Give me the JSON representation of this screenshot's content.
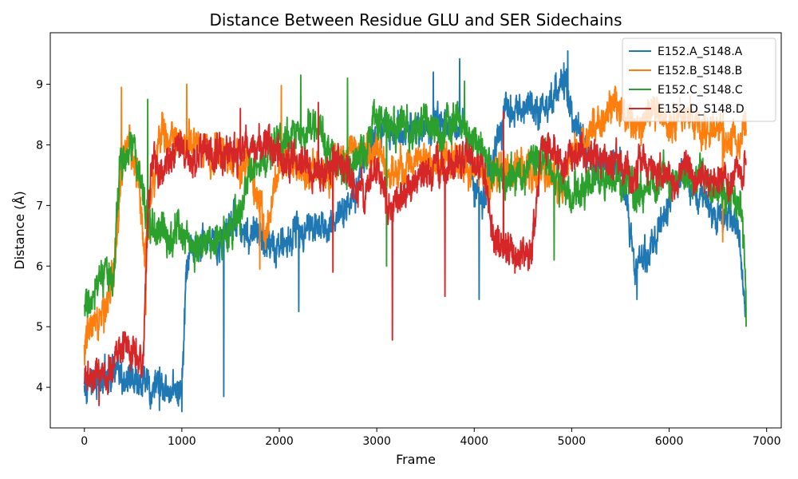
{
  "chart_data": {
    "type": "line",
    "title": "Distance Between Residue GLU and SER Sidechains",
    "xlabel": "Frame",
    "ylabel": "Distance (Å)",
    "xlim": [
      -350,
      7150
    ],
    "ylim": [
      3.33,
      9.85
    ],
    "xticks": [
      0,
      1000,
      2000,
      3000,
      4000,
      5000,
      6000,
      7000
    ],
    "yticks": [
      4,
      5,
      6,
      7,
      8,
      9
    ],
    "grid": false,
    "legend": "top-right",
    "series": [
      {
        "name": "E152.A_S148.A",
        "color": "#1f77b4",
        "trend": {
          "x": [
            0,
            200,
            500,
            800,
            1000,
            1050,
            1200,
            1400,
            1500,
            1700,
            2000,
            2300,
            2500,
            2800,
            3000,
            3300,
            3600,
            3900,
            4000,
            4100,
            4300,
            4600,
            4800,
            4900,
            5000,
            5200,
            5500,
            5650,
            5800,
            6100,
            6400,
            6700,
            6790
          ],
          "y": [
            4.2,
            4.0,
            4.1,
            4.0,
            4.05,
            6.0,
            6.3,
            6.2,
            6.8,
            6.6,
            6.4,
            6.6,
            6.5,
            7.5,
            8.3,
            8.2,
            8.3,
            8.4,
            7.4,
            7.0,
            8.5,
            8.6,
            8.7,
            9.0,
            8.4,
            7.6,
            7.6,
            6.0,
            6.2,
            7.5,
            7.0,
            6.8,
            5.3
          ]
        },
        "noise": 0.28,
        "dips": [
          {
            "x": 1430,
            "y": 3.85
          },
          {
            "x": 1000,
            "y": 3.6
          },
          {
            "x": 4050,
            "y": 5.45
          },
          {
            "x": 5670,
            "y": 5.45
          },
          {
            "x": 2200,
            "y": 5.25
          },
          {
            "x": 770,
            "y": 3.62
          }
        ],
        "peaks": [
          {
            "x": 4960,
            "y": 9.55
          },
          {
            "x": 3850,
            "y": 9.42
          },
          {
            "x": 4920,
            "y": 9.35
          },
          {
            "x": 3580,
            "y": 9.2
          }
        ]
      },
      {
        "name": "E152.B_S148.B",
        "color": "#ff7f0e",
        "trend": {
          "x": [
            0,
            100,
            200,
            300,
            380,
            450,
            550,
            620,
            700,
            800,
            1000,
            1200,
            1500,
            1700,
            1850,
            2000,
            2300,
            2600,
            2900,
            3200,
            3500,
            3800,
            4000,
            4300,
            4600,
            4900,
            5200,
            5500,
            5800,
            6100,
            6400,
            6700,
            6790
          ],
          "y": [
            4.6,
            5.2,
            5.5,
            5.8,
            7.4,
            8.2,
            7.6,
            6.4,
            7.6,
            8.2,
            8.0,
            8.1,
            7.8,
            7.6,
            6.6,
            7.8,
            7.5,
            7.7,
            7.8,
            7.6,
            7.8,
            7.7,
            7.5,
            7.6,
            7.6,
            7.5,
            8.3,
            8.4,
            8.4,
            8.4,
            8.3,
            8.0,
            8.4
          ]
        },
        "noise": 0.3,
        "dips": [
          {
            "x": 630,
            "y": 5.2
          },
          {
            "x": 200,
            "y": 4.9
          },
          {
            "x": 1800,
            "y": 5.95
          },
          {
            "x": 6550,
            "y": 6.4
          }
        ],
        "peaks": [
          {
            "x": 380,
            "y": 8.95
          },
          {
            "x": 1050,
            "y": 9.0
          },
          {
            "x": 2020,
            "y": 8.98
          },
          {
            "x": 5450,
            "y": 8.95
          }
        ]
      },
      {
        "name": "E152.C_S148.C",
        "color": "#2ca02c",
        "trend": {
          "x": [
            0,
            100,
            200,
            300,
            360,
            500,
            650,
            750,
            900,
            1100,
            1300,
            1500,
            1700,
            1900,
            2100,
            2400,
            2700,
            3000,
            3300,
            3600,
            3900,
            4200,
            4400,
            4600,
            4800,
            5000,
            5300,
            5600,
            5900,
            6200,
            6500,
            6750,
            6790
          ],
          "y": [
            5.3,
            5.5,
            5.8,
            5.6,
            7.6,
            7.9,
            6.8,
            6.4,
            6.6,
            6.4,
            6.5,
            6.6,
            7.5,
            8.0,
            8.3,
            8.2,
            7.5,
            8.4,
            8.2,
            8.4,
            8.3,
            7.5,
            7.5,
            7.9,
            7.6,
            7.2,
            7.5,
            7.3,
            7.4,
            7.5,
            7.3,
            7.0,
            5.3
          ]
        },
        "noise": 0.32,
        "dips": [
          {
            "x": 6790,
            "y": 5.0
          },
          {
            "x": 4820,
            "y": 6.1
          },
          {
            "x": 1130,
            "y": 5.9
          },
          {
            "x": 3100,
            "y": 6.0
          }
        ],
        "peaks": [
          {
            "x": 2220,
            "y": 9.15
          },
          {
            "x": 3900,
            "y": 9.05
          },
          {
            "x": 650,
            "y": 8.75
          },
          {
            "x": 2700,
            "y": 9.1
          }
        ]
      },
      {
        "name": "E152.D_S148.D",
        "color": "#d62728",
        "trend": {
          "x": [
            0,
            100,
            200,
            300,
            400,
            500,
            600,
            650,
            700,
            800,
            1000,
            1300,
            1600,
            1900,
            2200,
            2500,
            2800,
            3000,
            3150,
            3300,
            3600,
            3900,
            4100,
            4200,
            4400,
            4600,
            4700,
            5000,
            5300,
            5600,
            5900,
            6200,
            6500,
            6790
          ],
          "y": [
            4.1,
            4.3,
            4.1,
            4.4,
            4.6,
            4.5,
            4.4,
            7.0,
            7.8,
            7.6,
            7.8,
            7.7,
            7.9,
            7.8,
            7.6,
            7.7,
            7.2,
            7.6,
            6.8,
            7.3,
            7.6,
            7.8,
            7.6,
            6.4,
            6.2,
            6.3,
            7.8,
            7.8,
            7.7,
            7.6,
            7.5,
            7.5,
            7.4,
            7.4
          ]
        },
        "noise": 0.3,
        "dips": [
          {
            "x": 3160,
            "y": 4.78
          },
          {
            "x": 150,
            "y": 3.7
          },
          {
            "x": 2550,
            "y": 5.9
          },
          {
            "x": 3700,
            "y": 5.5
          }
        ],
        "peaks": [
          {
            "x": 4300,
            "y": 8.55
          },
          {
            "x": 2400,
            "y": 8.7
          },
          {
            "x": 1600,
            "y": 8.6
          }
        ]
      }
    ]
  }
}
